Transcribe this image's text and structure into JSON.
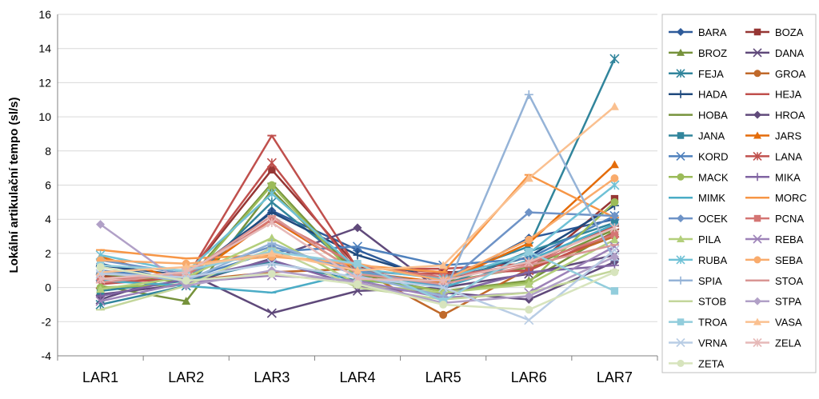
{
  "chart_data": {
    "type": "line",
    "title": "",
    "xlabel": "",
    "ylabel": "Lokální artikulační tempo (sl/s)",
    "ylim": [
      -4,
      16
    ],
    "yticks": [
      -4,
      -2,
      0,
      2,
      4,
      6,
      8,
      10,
      12,
      14,
      16
    ],
    "grid": true,
    "legend": "right",
    "categories": [
      "LAR1",
      "LAR2",
      "LAR3",
      "LAR4",
      "LAR5",
      "LAR6",
      "LAR7"
    ],
    "series": [
      {
        "name": "BARA",
        "color": "#2E5B9A",
        "marker": "diamond",
        "values": [
          1.4,
          0.3,
          4.5,
          2.2,
          0.2,
          2.9,
          4.0
        ]
      },
      {
        "name": "BOZA",
        "color": "#963634",
        "marker": "square",
        "values": [
          0.7,
          0.6,
          6.9,
          1.2,
          0.9,
          1.0,
          5.2
        ]
      },
      {
        "name": "BROZ",
        "color": "#76923C",
        "marker": "triangle",
        "values": [
          0.1,
          -0.8,
          5.7,
          0.6,
          -0.2,
          0.4,
          3.3
        ]
      },
      {
        "name": "DANA",
        "color": "#5F497A",
        "marker": "x",
        "values": [
          -0.7,
          0.9,
          -1.5,
          -0.2,
          0.0,
          0.8,
          1.9
        ]
      },
      {
        "name": "FEJA",
        "color": "#31859C",
        "marker": "star",
        "values": [
          -1.0,
          0.1,
          5.0,
          1.0,
          0.6,
          2.4,
          13.4
        ]
      },
      {
        "name": "GROA",
        "color": "#C0692A",
        "marker": "circle",
        "values": [
          0.6,
          0.4,
          0.9,
          1.1,
          -1.6,
          1.1,
          3.0
        ]
      },
      {
        "name": "HADA",
        "color": "#1F497D",
        "marker": "plus",
        "values": [
          1.3,
          0.7,
          4.4,
          1.9,
          0.4,
          1.8,
          4.8
        ]
      },
      {
        "name": "HEJA",
        "color": "#C0504D",
        "marker": "dash",
        "values": [
          0.3,
          0.5,
          8.9,
          1.1,
          1.1,
          1.4,
          3.6
        ]
      },
      {
        "name": "HOBA",
        "color": "#77933C",
        "marker": "dash",
        "values": [
          0.8,
          0.3,
          6.1,
          0.7,
          0.3,
          1.2,
          3.4
        ]
      },
      {
        "name": "HROA",
        "color": "#604A7B",
        "marker": "diamond",
        "values": [
          -0.4,
          0.2,
          1.7,
          3.5,
          -0.3,
          -0.7,
          1.5
        ]
      },
      {
        "name": "JANA",
        "color": "#31859C",
        "marker": "square",
        "values": [
          -0.2,
          0.4,
          1.5,
          0.4,
          0.1,
          2.1,
          3.8
        ]
      },
      {
        "name": "JARS",
        "color": "#E46C0A",
        "marker": "triangle",
        "values": [
          1.8,
          0.4,
          4.0,
          0.9,
          0.3,
          2.6,
          7.2
        ]
      },
      {
        "name": "KORD",
        "color": "#4F81BD",
        "marker": "x",
        "values": [
          1.0,
          0.5,
          2.1,
          2.4,
          1.3,
          1.7,
          4.2
        ]
      },
      {
        "name": "LANA",
        "color": "#C0504D",
        "marker": "star",
        "values": [
          0.2,
          0.6,
          7.3,
          0.9,
          0.8,
          1.0,
          3.2
        ]
      },
      {
        "name": "MACK",
        "color": "#9BBB59",
        "marker": "circle",
        "values": [
          0.0,
          0.2,
          6.0,
          0.5,
          -0.2,
          0.3,
          5.0
        ]
      },
      {
        "name": "MIKA",
        "color": "#8064A2",
        "marker": "plus",
        "values": [
          -0.5,
          0.5,
          1.6,
          0.1,
          -0.4,
          0.9,
          1.3
        ]
      },
      {
        "name": "MIMK",
        "color": "#4BACC6",
        "marker": "dash",
        "values": [
          0.4,
          0.1,
          -0.3,
          0.9,
          0.0,
          1.6,
          3.7
        ]
      },
      {
        "name": "MORC",
        "color": "#F79646",
        "marker": "dash",
        "values": [
          2.2,
          1.7,
          1.9,
          1.3,
          0.9,
          6.6,
          4.1
        ]
      },
      {
        "name": "OCEK",
        "color": "#6E93C7",
        "marker": "diamond",
        "values": [
          1.6,
          0.8,
          2.4,
          1.0,
          0.1,
          4.4,
          4.2
        ]
      },
      {
        "name": "PCNA",
        "color": "#D47573",
        "marker": "square",
        "values": [
          0.5,
          0.7,
          4.0,
          1.3,
          0.6,
          1.4,
          3.1
        ]
      },
      {
        "name": "PILA",
        "color": "#B3CF7B",
        "marker": "triangle",
        "values": [
          -0.1,
          0.6,
          2.9,
          0.2,
          -0.3,
          0.2,
          2.8
        ]
      },
      {
        "name": "REBA",
        "color": "#9D82B8",
        "marker": "x",
        "values": [
          -0.8,
          0.3,
          0.7,
          0.4,
          -0.6,
          -0.3,
          2.4
        ]
      },
      {
        "name": "RUBA",
        "color": "#6FC1D6",
        "marker": "star",
        "values": [
          1.9,
          0.9,
          5.5,
          1.1,
          0.5,
          2.0,
          6.0
        ]
      },
      {
        "name": "SEBA",
        "color": "#F9AB6C",
        "marker": "circle",
        "values": [
          1.6,
          1.4,
          1.8,
          1.4,
          0.4,
          2.8,
          6.4
        ]
      },
      {
        "name": "SPIA",
        "color": "#95B3D7",
        "marker": "plus",
        "values": [
          0.9,
          0.4,
          2.6,
          0.7,
          -0.5,
          11.3,
          1.6
        ]
      },
      {
        "name": "STOA",
        "color": "#D99694",
        "marker": "dash",
        "values": [
          0.3,
          0.8,
          4.2,
          0.8,
          0.2,
          1.3,
          2.5
        ]
      },
      {
        "name": "STOB",
        "color": "#C3D69B",
        "marker": "dash",
        "values": [
          -1.3,
          0.1,
          2.3,
          0.0,
          -0.7,
          -0.3,
          1.0
        ]
      },
      {
        "name": "STPA",
        "color": "#B1A0C7",
        "marker": "diamond",
        "values": [
          3.7,
          0.1,
          1.0,
          0.3,
          -0.9,
          -0.5,
          1.8
        ]
      },
      {
        "name": "TROA",
        "color": "#92CDDC",
        "marker": "square",
        "values": [
          1.3,
          1.0,
          2.1,
          1.4,
          -0.8,
          2.1,
          -0.2
        ]
      },
      {
        "name": "VASA",
        "color": "#FAC090",
        "marker": "triangle",
        "values": [
          0.9,
          1.2,
          2.0,
          1.0,
          1.3,
          6.4,
          10.6
        ]
      },
      {
        "name": "VRNA",
        "color": "#B9CDE5",
        "marker": "x",
        "values": [
          0.8,
          0.6,
          1.4,
          0.6,
          0.0,
          -1.9,
          2.2
        ]
      },
      {
        "name": "ZELA",
        "color": "#E6B9B8",
        "marker": "star",
        "values": [
          0.5,
          0.9,
          3.8,
          0.5,
          0.4,
          1.5,
          3.5
        ]
      },
      {
        "name": "ZETA",
        "color": "#D7E4BD",
        "marker": "circle",
        "values": [
          1.2,
          0.4,
          0.8,
          0.2,
          -1.0,
          -1.3,
          0.9
        ]
      }
    ]
  }
}
